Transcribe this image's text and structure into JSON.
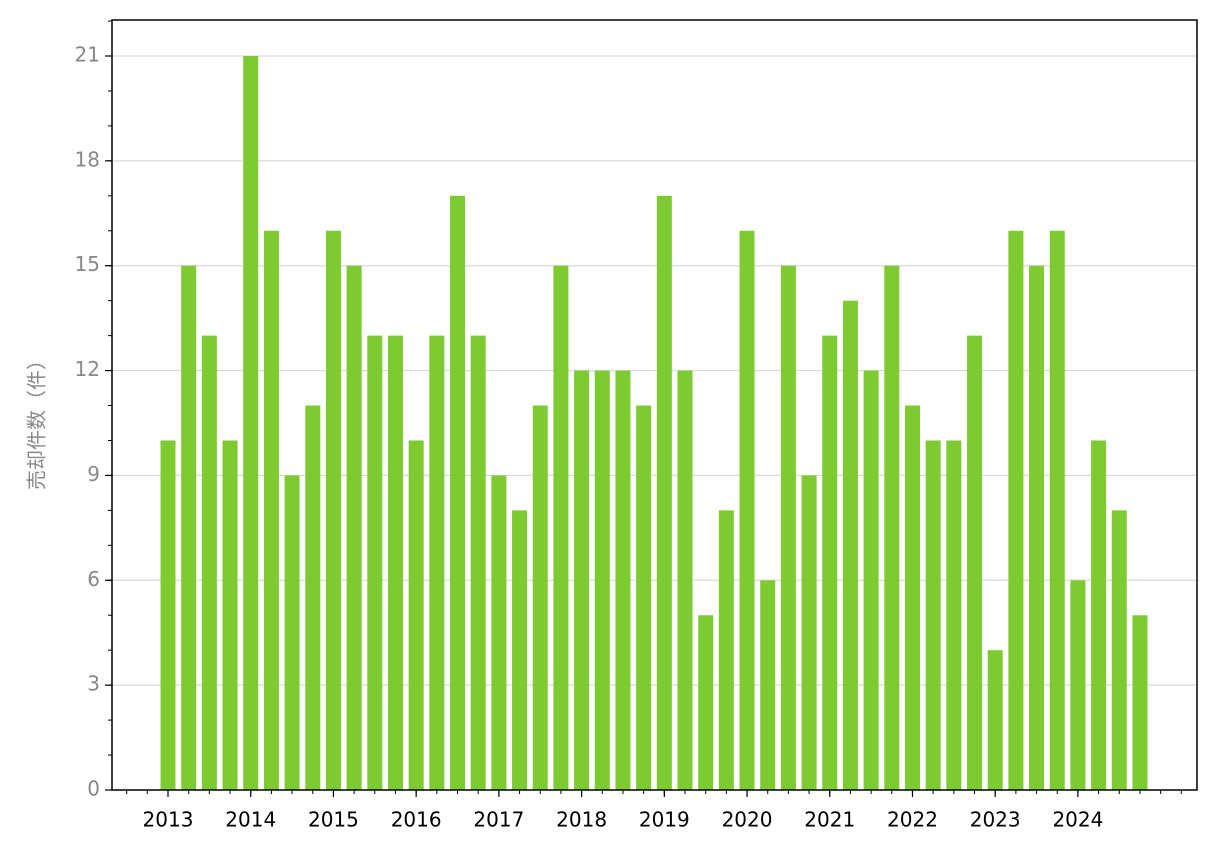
{
  "chart_data": {
    "type": "bar",
    "y_label": "売却件数（件）",
    "categories": [
      "2013",
      null,
      null,
      null,
      "2014",
      null,
      null,
      null,
      "2015",
      null,
      null,
      null,
      "2016",
      null,
      null,
      null,
      "2017",
      null,
      null,
      null,
      "2018",
      null,
      null,
      null,
      "2019",
      null,
      null,
      null,
      "2020",
      null,
      null,
      null,
      "2021",
      null,
      null,
      null,
      "2022",
      null,
      null,
      null,
      "2023",
      null,
      null,
      null,
      "2024",
      null,
      null,
      null
    ],
    "values": [
      10,
      15,
      13,
      10,
      21,
      16,
      9,
      11,
      16,
      15,
      13,
      13,
      10,
      13,
      17,
      13,
      9,
      8,
      11,
      15,
      12,
      12,
      12,
      11,
      17,
      12,
      5,
      8,
      16,
      6,
      15,
      9,
      13,
      14,
      12,
      15,
      11,
      10,
      10,
      13,
      4,
      16,
      15,
      16,
      6,
      10,
      8,
      5
    ],
    "color": "#7dcb31",
    "ylim": [
      0,
      22.03
    ],
    "yticks": [
      0,
      3,
      6,
      9,
      12,
      15,
      18,
      21
    ],
    "grid": true
  }
}
